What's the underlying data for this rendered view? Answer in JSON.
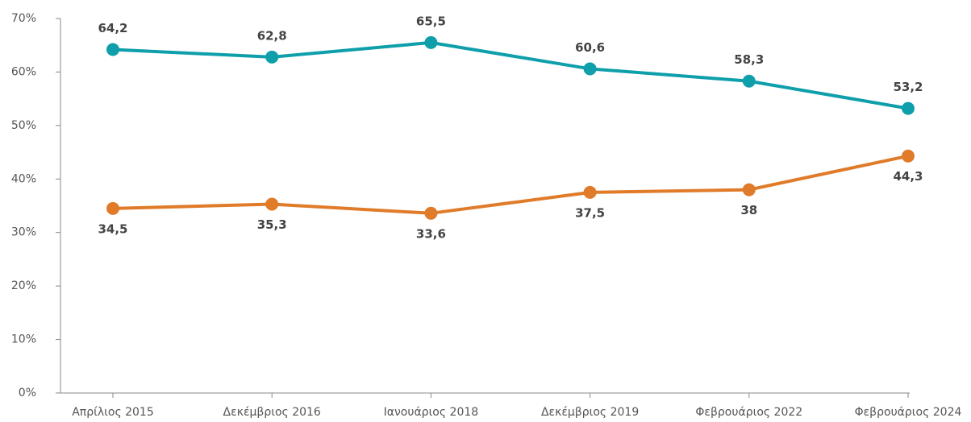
{
  "chart_data": {
    "type": "line",
    "categories": [
      "Απρίλιος 2015",
      "Δεκέμβριος 2016",
      "Ιανουάριος 2018",
      "Δεκέμβριος 2019",
      "Φεβρουάριος 2022",
      "Φεβρουάριος 2024"
    ],
    "series": [
      {
        "color": "#0e9fab",
        "values": [
          64.2,
          62.8,
          65.5,
          60.6,
          58.3,
          53.2
        ],
        "value_labels": [
          "64,2",
          "62,8",
          "65,5",
          "60,6",
          "58,3",
          "53,2"
        ]
      },
      {
        "color": "#e07b2a",
        "values": [
          34.5,
          35.3,
          33.6,
          37.5,
          38,
          44.3
        ],
        "value_labels": [
          "34,5",
          "35,3",
          "33,6",
          "37,5",
          "38",
          "44,3"
        ]
      }
    ],
    "ylim": [
      0,
      70
    ],
    "yticks": [
      {
        "value": 0,
        "label": "0%"
      },
      {
        "value": 10,
        "label": "10%"
      },
      {
        "value": 20,
        "label": "20%"
      },
      {
        "value": 30,
        "label": "30%"
      },
      {
        "value": 40,
        "label": "40%"
      },
      {
        "value": 50,
        "label": "50%"
      },
      {
        "value": 60,
        "label": "60%"
      },
      {
        "value": 70,
        "label": "70%"
      }
    ],
    "grid": false
  }
}
